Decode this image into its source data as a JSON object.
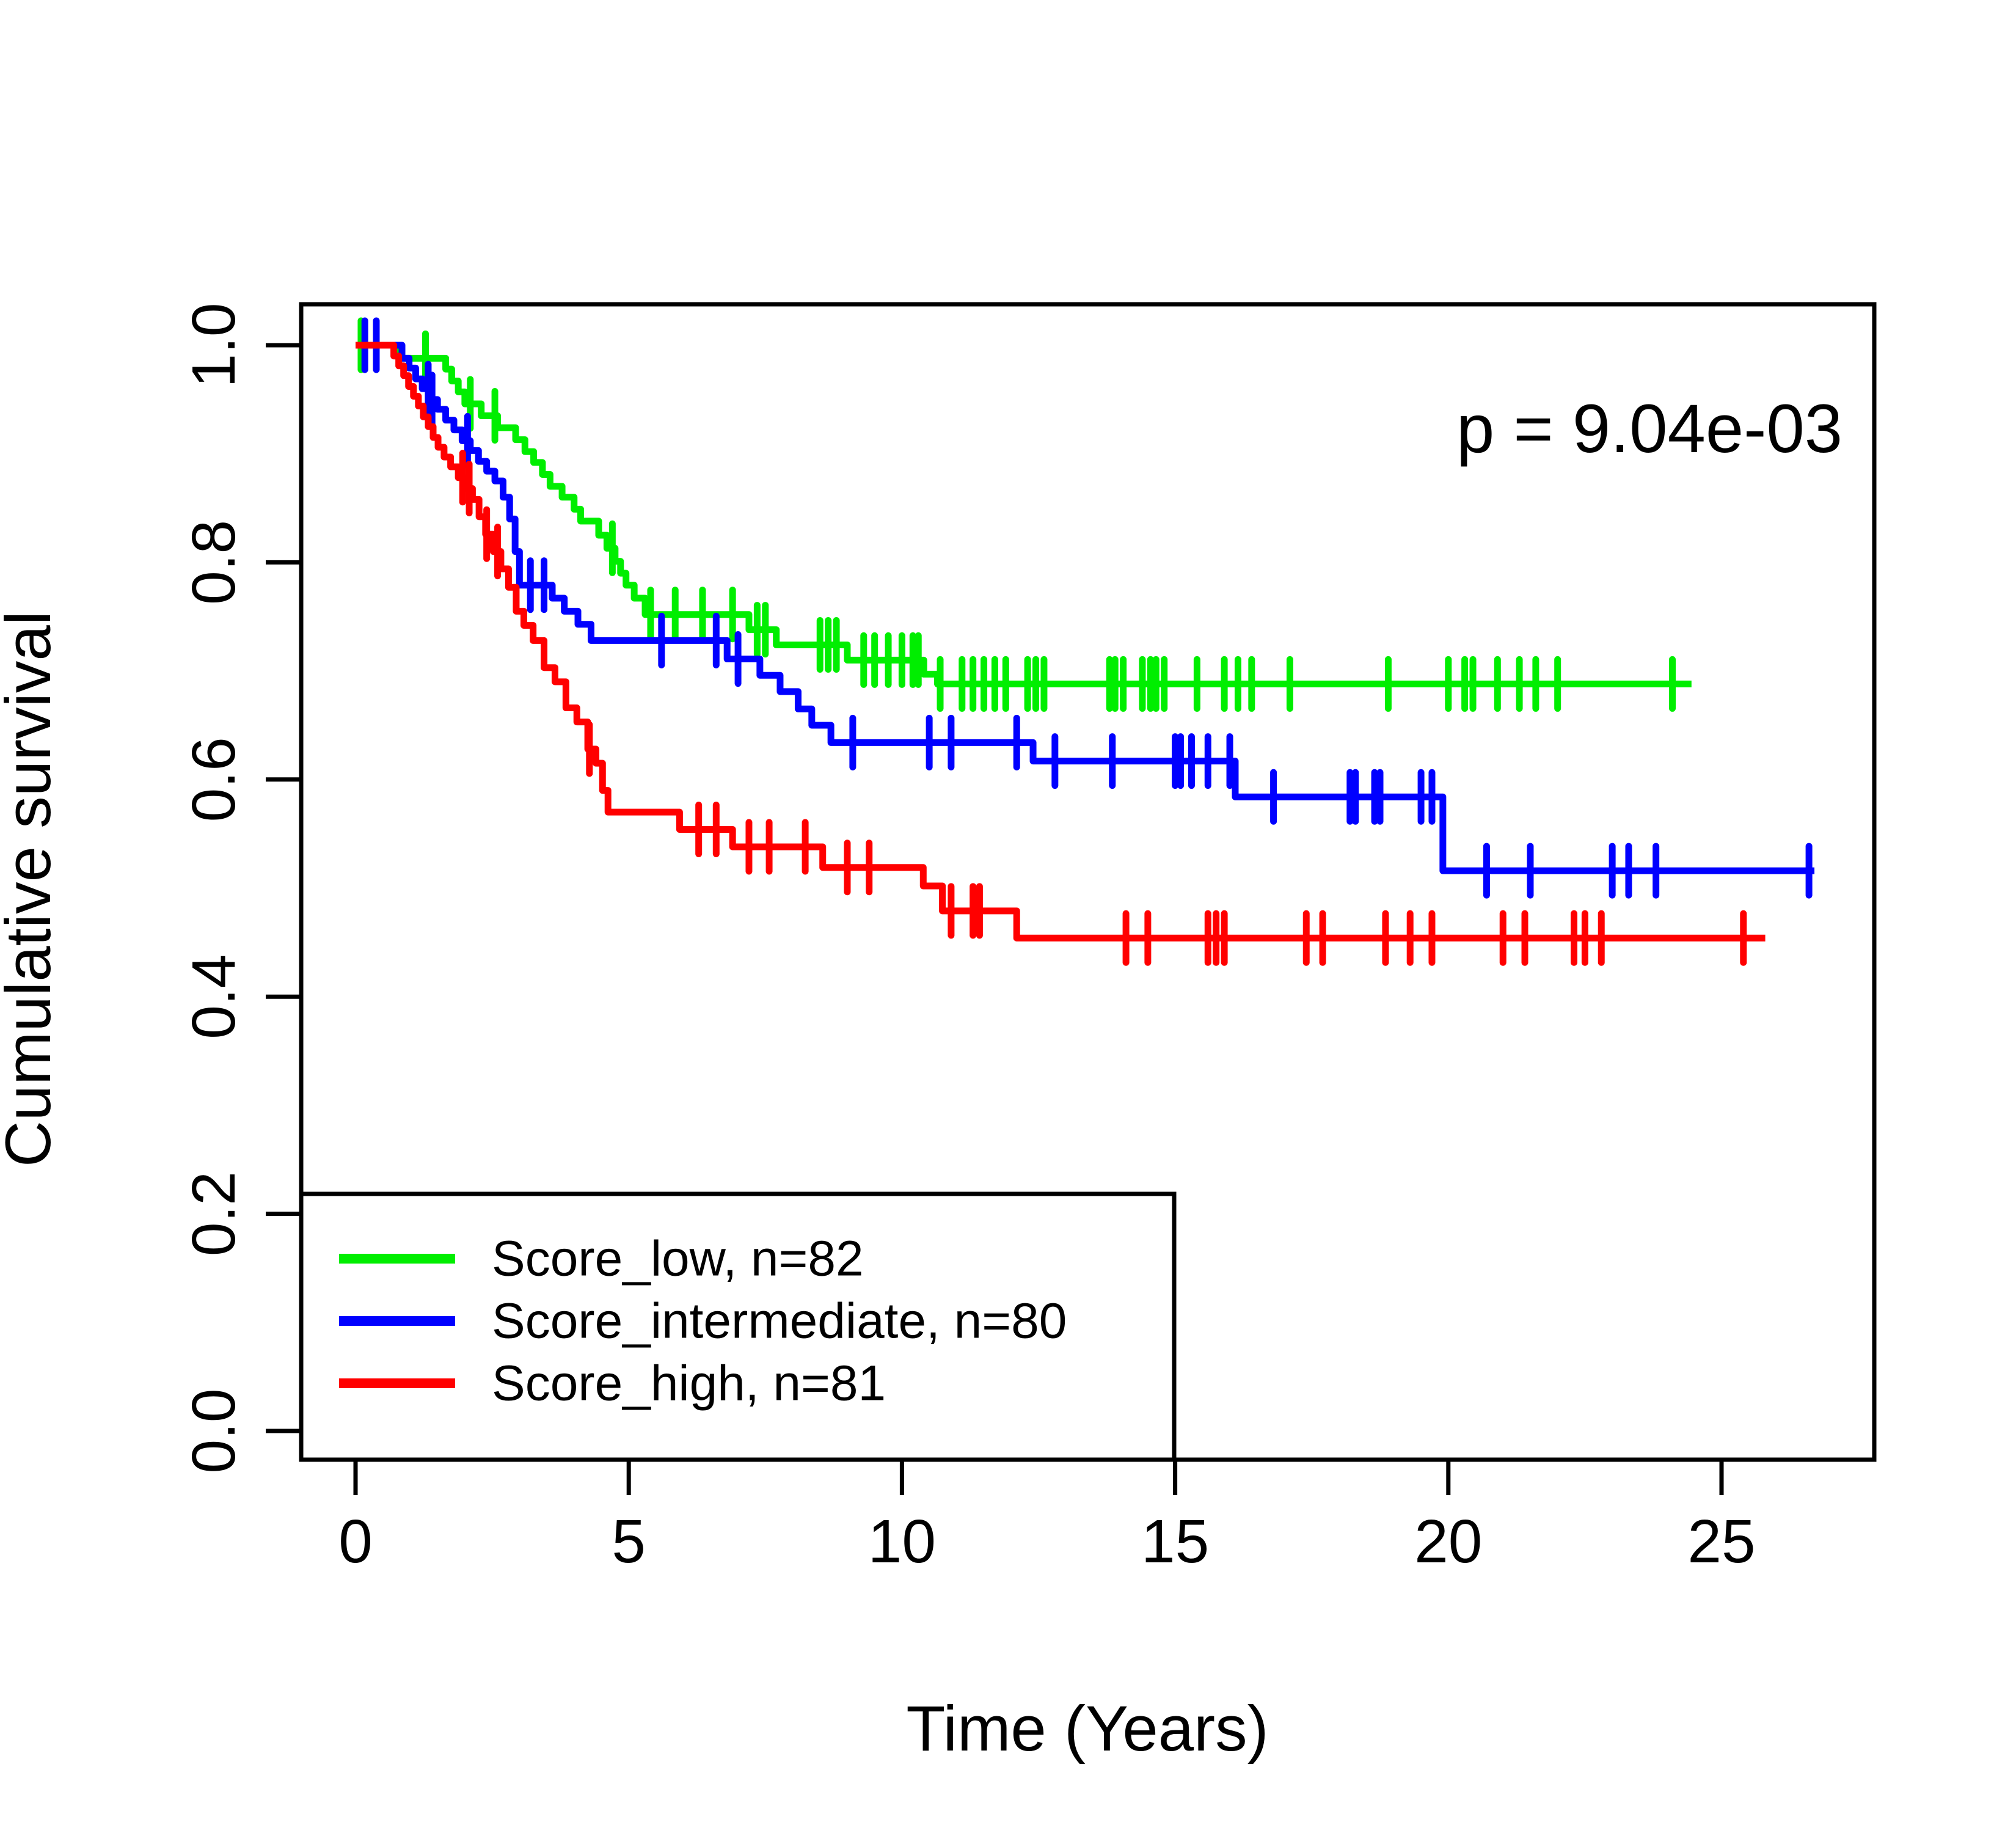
{
  "p_value_label": "p = 9.04e-03",
  "chart_data": {
    "type": "line",
    "subtype": "kaplan-meier-step",
    "title": "",
    "xlabel": "Time (Years)",
    "ylabel": "Cumulative survival",
    "xlim": [
      0,
      27.8
    ],
    "ylim": [
      0.0,
      1.0
    ],
    "x_ticks": {
      "values": [
        0,
        5,
        10,
        15,
        20,
        25
      ],
      "labels": [
        "0",
        "5",
        "10",
        "15",
        "20",
        "25"
      ]
    },
    "y_ticks": {
      "values": [
        0.0,
        0.2,
        0.4,
        0.6,
        0.8,
        1.0
      ],
      "labels": [
        "0.0",
        "0.2",
        "0.4",
        "0.6",
        "0.8",
        "1.0"
      ]
    },
    "annotation": "p = 9.04e-03",
    "grid": false,
    "legend_position": "bottom-left",
    "axis_color": "#000000",
    "background_color": "#ffffff",
    "series": [
      {
        "name": "Score_low",
        "n": 82,
        "legend_label": "Score_low, n=82",
        "color": "#00ee00",
        "end_time": 24.45,
        "steps": [
          [
            0,
            1.0
          ],
          [
            0.82,
            0.988
          ],
          [
            1.65,
            0.978
          ],
          [
            1.76,
            0.967
          ],
          [
            1.88,
            0.957
          ],
          [
            2.0,
            0.946
          ],
          [
            2.3,
            0.935
          ],
          [
            2.6,
            0.924
          ],
          [
            2.93,
            0.913
          ],
          [
            3.1,
            0.902
          ],
          [
            3.26,
            0.892
          ],
          [
            3.42,
            0.881
          ],
          [
            3.56,
            0.87
          ],
          [
            3.78,
            0.86
          ],
          [
            4.0,
            0.849
          ],
          [
            4.12,
            0.838
          ],
          [
            4.45,
            0.825
          ],
          [
            4.6,
            0.813
          ],
          [
            4.75,
            0.801
          ],
          [
            4.85,
            0.79
          ],
          [
            4.95,
            0.779
          ],
          [
            5.1,
            0.767
          ],
          [
            5.3,
            0.752
          ],
          [
            7.2,
            0.738
          ],
          [
            7.7,
            0.724
          ],
          [
            9.0,
            0.71
          ],
          [
            10.4,
            0.697
          ],
          [
            10.65,
            0.688
          ]
        ],
        "censor_times": [
          0.1,
          1.28,
          2.1,
          2.55,
          4.7,
          5.4,
          5.85,
          6.35,
          6.9,
          7.35,
          7.5,
          8.5,
          8.65,
          8.8,
          9.3,
          9.5,
          9.75,
          10.0,
          10.2,
          10.3,
          10.7,
          11.1,
          11.3,
          11.5,
          11.7,
          11.9,
          12.3,
          12.45,
          12.6,
          13.8,
          13.9,
          14.05,
          14.4,
          14.55,
          14.65,
          14.8,
          15.4,
          15.9,
          16.15,
          16.4,
          17.1,
          18.9,
          20.0,
          20.3,
          20.45,
          20.9,
          21.3,
          21.6,
          22.0,
          24.1
        ]
      },
      {
        "name": "Score_intermediate",
        "n": 80,
        "legend_label": "Score_intermediate, n=80",
        "color": "#0000ff",
        "end_time": 26.7,
        "steps": [
          [
            0,
            1.0
          ],
          [
            0.85,
            0.988
          ],
          [
            0.98,
            0.979
          ],
          [
            1.1,
            0.969
          ],
          [
            1.22,
            0.96
          ],
          [
            1.35,
            0.95
          ],
          [
            1.5,
            0.941
          ],
          [
            1.65,
            0.931
          ],
          [
            1.8,
            0.922
          ],
          [
            1.95,
            0.912
          ],
          [
            2.1,
            0.903
          ],
          [
            2.25,
            0.893
          ],
          [
            2.4,
            0.884
          ],
          [
            2.55,
            0.875
          ],
          [
            2.7,
            0.86
          ],
          [
            2.82,
            0.84
          ],
          [
            2.92,
            0.81
          ],
          [
            3.0,
            0.779
          ],
          [
            3.6,
            0.767
          ],
          [
            3.82,
            0.755
          ],
          [
            4.07,
            0.743
          ],
          [
            4.31,
            0.728
          ],
          [
            6.8,
            0.711
          ],
          [
            7.4,
            0.696
          ],
          [
            7.77,
            0.681
          ],
          [
            8.1,
            0.665
          ],
          [
            8.35,
            0.65
          ],
          [
            8.7,
            0.634
          ],
          [
            12.4,
            0.617
          ],
          [
            16.1,
            0.584
          ],
          [
            19.9,
            0.516
          ]
        ],
        "censor_times": [
          0.17,
          0.38,
          1.33,
          1.4,
          2.05,
          3.2,
          3.45,
          5.6,
          6.6,
          7.0,
          9.1,
          10.5,
          10.9,
          12.1,
          12.8,
          13.85,
          15.0,
          15.1,
          15.3,
          15.6,
          16.0,
          16.8,
          18.2,
          18.3,
          18.65,
          18.75,
          19.5,
          19.7,
          20.7,
          21.5,
          23.0,
          23.3,
          23.8,
          26.6
        ]
      },
      {
        "name": "Score_high",
        "n": 81,
        "legend_label": "Score_high, n=81",
        "color": "#ff0000",
        "end_time": 25.8,
        "steps": [
          [
            0,
            1.0
          ],
          [
            0.7,
            0.99
          ],
          [
            0.79,
            0.981
          ],
          [
            0.88,
            0.972
          ],
          [
            0.97,
            0.962
          ],
          [
            1.06,
            0.953
          ],
          [
            1.15,
            0.944
          ],
          [
            1.24,
            0.934
          ],
          [
            1.33,
            0.925
          ],
          [
            1.42,
            0.915
          ],
          [
            1.51,
            0.906
          ],
          [
            1.62,
            0.897
          ],
          [
            1.74,
            0.888
          ],
          [
            1.88,
            0.878
          ],
          [
            2.02,
            0.868
          ],
          [
            2.14,
            0.858
          ],
          [
            2.26,
            0.842
          ],
          [
            2.38,
            0.826
          ],
          [
            2.52,
            0.81
          ],
          [
            2.66,
            0.794
          ],
          [
            2.8,
            0.777
          ],
          [
            2.94,
            0.755
          ],
          [
            3.08,
            0.742
          ],
          [
            3.25,
            0.728
          ],
          [
            3.45,
            0.703
          ],
          [
            3.65,
            0.69
          ],
          [
            3.85,
            0.666
          ],
          [
            4.05,
            0.653
          ],
          [
            4.25,
            0.628
          ],
          [
            4.4,
            0.615
          ],
          [
            4.52,
            0.59
          ],
          [
            4.62,
            0.57
          ],
          [
            5.93,
            0.554
          ],
          [
            6.9,
            0.538
          ],
          [
            8.55,
            0.519
          ],
          [
            10.39,
            0.502
          ],
          [
            10.74,
            0.479
          ],
          [
            12.1,
            0.454
          ]
        ],
        "censor_times": [
          1.96,
          2.08,
          2.4,
          2.6,
          4.28,
          6.28,
          6.6,
          7.2,
          7.57,
          8.23,
          9.0,
          9.4,
          10.9,
          11.3,
          11.42,
          14.1,
          14.5,
          15.6,
          15.75,
          15.9,
          17.4,
          17.7,
          18.85,
          19.3,
          19.7,
          21.0,
          21.4,
          22.3,
          22.5,
          22.8,
          25.4
        ]
      }
    ]
  }
}
